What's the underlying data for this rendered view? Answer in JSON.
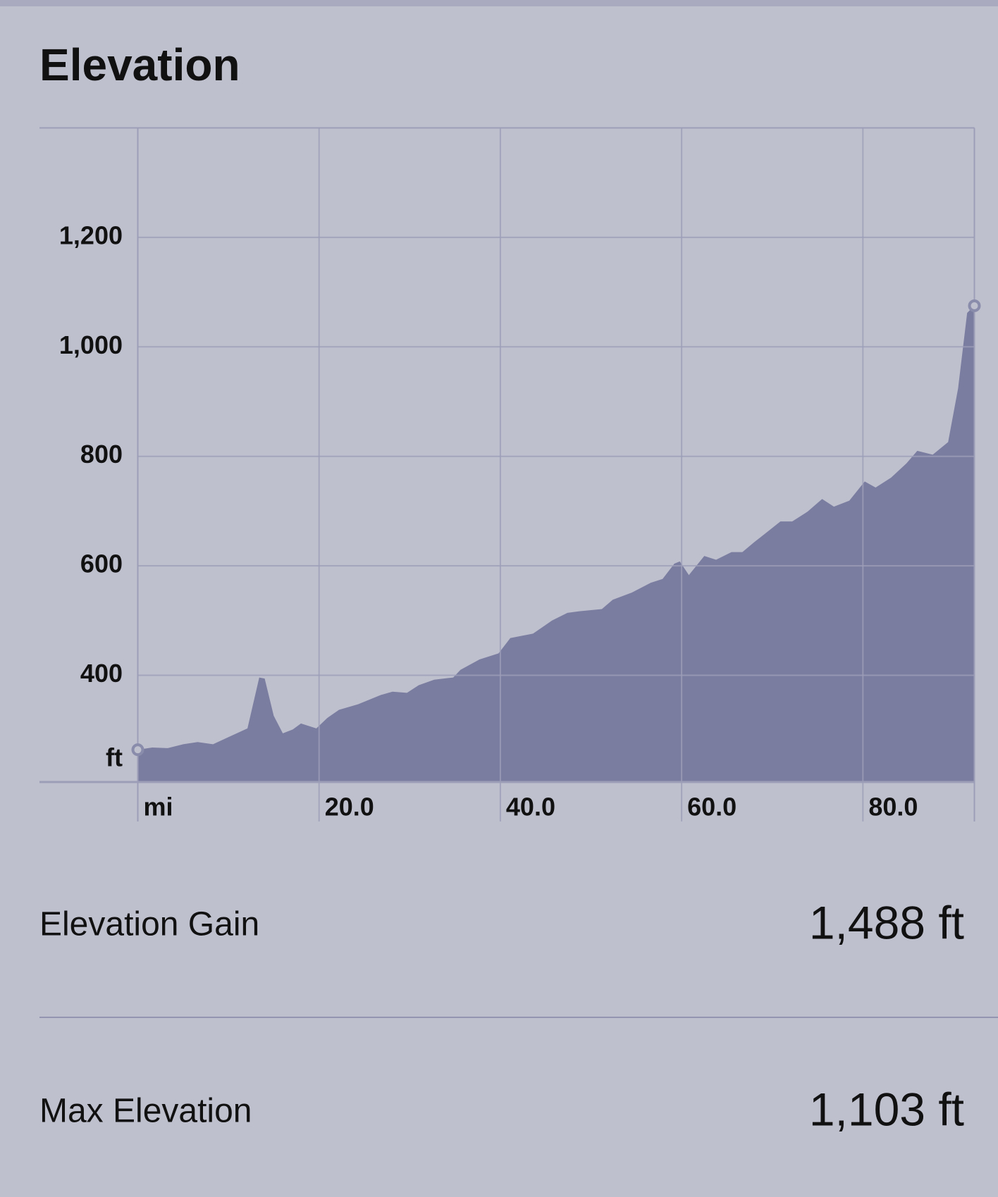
{
  "chart_data": {
    "type": "area",
    "title": "Elevation",
    "x_unit": "mi",
    "y_unit": "ft",
    "color": "#7b7da0",
    "grid": true,
    "x": [
      0,
      1.6,
      3.3,
      5,
      6.6,
      8.3,
      10,
      12.1,
      13.4,
      14,
      15,
      16,
      17.1,
      18,
      19.7,
      20.9,
      22.2,
      24.3,
      26.8,
      28.1,
      29.7,
      31,
      32.7,
      34.8,
      35.6,
      37.7,
      39.8,
      41.1,
      43.6,
      45.7,
      47.4,
      48.7,
      51.2,
      52.4,
      54.5,
      56.6,
      57.9,
      59.2,
      59.8,
      60.8,
      62.5,
      63.8,
      65.5,
      66.7,
      68,
      69.3,
      70.9,
      72.2,
      73.9,
      75.5,
      76.8,
      78.5,
      80.2,
      81.4,
      83.1,
      84.8,
      86,
      87.7,
      89.4,
      90.5,
      91.5,
      92.3
    ],
    "values": [
      264,
      268,
      267,
      274,
      278,
      274,
      287,
      303,
      396,
      394,
      326,
      294,
      301,
      312,
      303,
      322,
      337,
      347,
      364,
      370,
      368,
      382,
      392,
      396,
      410,
      429,
      440,
      468,
      476,
      500,
      514,
      517,
      521,
      538,
      551,
      569,
      576,
      604,
      608,
      583,
      618,
      611,
      625,
      625,
      643,
      660,
      681,
      681,
      699,
      722,
      708,
      719,
      754,
      743,
      761,
      787,
      810,
      803,
      826,
      924,
      1062,
      1075
    ],
    "xlim": [
      0,
      92.3
    ],
    "ylim": [
      205,
      1400
    ],
    "xticks": [
      {
        "value": 20,
        "label": "20.0"
      },
      {
        "value": 40,
        "label": "40.0"
      },
      {
        "value": 60,
        "label": "60.0"
      },
      {
        "value": 80,
        "label": "80.0"
      }
    ],
    "yticks": [
      {
        "value": 400,
        "label": "400"
      },
      {
        "value": 600,
        "label": "600"
      },
      {
        "value": 800,
        "label": "800"
      },
      {
        "value": 1000,
        "label": "1,000"
      },
      {
        "value": 1200,
        "label": "1,200"
      }
    ]
  },
  "stats": [
    {
      "label": "Elevation Gain",
      "value": "1,488 ft"
    },
    {
      "label": "Max Elevation",
      "value": "1,103 ft"
    }
  ]
}
